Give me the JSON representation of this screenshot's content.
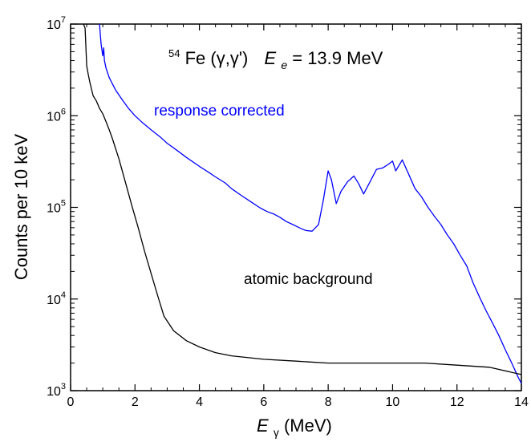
{
  "chart_data": {
    "type": "line",
    "title": {
      "iso_mass": "54",
      "nucleus": "Fe",
      "reaction": "(γ,γ')",
      "energy_symbol": "E",
      "energy_subscript": "e",
      "energy_value": " = 13.9 MeV"
    },
    "xlabel": {
      "symbol": "E",
      "subscript": "γ",
      "unit": " (MeV)"
    },
    "ylabel": "Counts per 10 keV",
    "xlim": [
      0,
      14
    ],
    "ylim": [
      1000,
      10000000
    ],
    "yscale": "log",
    "x_ticks": [
      "0",
      "2",
      "4",
      "6",
      "8",
      "10",
      "12",
      "14"
    ],
    "y_ticks": [
      {
        "base": "10",
        "exp": "3"
      },
      {
        "base": "10",
        "exp": "4"
      },
      {
        "base": "10",
        "exp": "5"
      },
      {
        "base": "10",
        "exp": "6"
      },
      {
        "base": "10",
        "exp": "7"
      }
    ],
    "grid": false,
    "series": [
      {
        "name": "response corrected",
        "color": "#0000ff",
        "x": [
          0.9,
          0.92,
          0.95,
          1.0,
          1.03,
          1.05,
          1.1,
          1.2,
          1.4,
          1.6,
          1.8,
          2.0,
          2.2,
          2.5,
          2.8,
          3.0,
          3.3,
          3.6,
          4.0,
          4.3,
          4.5,
          4.8,
          5.0,
          5.3,
          5.6,
          5.9,
          6.1,
          6.3,
          6.5,
          6.7,
          6.9,
          7.1,
          7.3,
          7.5,
          7.7,
          7.85,
          8.0,
          8.1,
          8.25,
          8.4,
          8.6,
          8.8,
          8.95,
          9.1,
          9.3,
          9.5,
          9.7,
          9.9,
          10.0,
          10.1,
          10.3,
          10.5,
          10.7,
          10.9,
          11.1,
          11.3,
          11.5,
          11.7,
          11.9,
          12.1,
          12.3,
          12.5,
          12.7,
          12.9,
          13.1,
          13.3,
          13.5,
          13.7,
          13.9,
          14.0
        ],
        "y": [
          10000000,
          8000000,
          6000000,
          4500000,
          5500000,
          4000000,
          3300000,
          2600000,
          1900000,
          1500000,
          1200000,
          1000000,
          860000,
          700000,
          580000,
          500000,
          420000,
          350000,
          280000,
          240000,
          215000,
          185000,
          160000,
          135000,
          115000,
          98000,
          90000,
          85000,
          78000,
          70000,
          65000,
          60000,
          56000,
          55000,
          65000,
          120000,
          250000,
          200000,
          110000,
          150000,
          190000,
          220000,
          180000,
          140000,
          190000,
          260000,
          270000,
          300000,
          320000,
          250000,
          330000,
          230000,
          160000,
          130000,
          100000,
          80000,
          65000,
          50000,
          40000,
          30000,
          23000,
          15000,
          10500,
          7500,
          5500,
          4000,
          2800,
          2000,
          1400,
          1200
        ]
      },
      {
        "name": "atomic background",
        "color": "#000000",
        "x": [
          0.4,
          0.45,
          0.5,
          0.55,
          0.6,
          0.7,
          0.8,
          0.9,
          1.0,
          1.1,
          1.2,
          1.3,
          1.5,
          1.7,
          1.9,
          2.1,
          2.3,
          2.5,
          2.7,
          2.9,
          3.2,
          3.6,
          4.0,
          4.5,
          5.0,
          6.0,
          7.0,
          8.0,
          9.0,
          10.0,
          11.0,
          12.0,
          13.0,
          14.0
        ],
        "y": [
          10000000,
          9000000,
          3500000,
          2800000,
          2300000,
          1650000,
          1450000,
          1200000,
          1050000,
          860000,
          700000,
          560000,
          340000,
          190000,
          105000,
          60000,
          33000,
          19000,
          11000,
          6500,
          4500,
          3500,
          3000,
          2600,
          2400,
          2200,
          2100,
          2000,
          2000,
          2000,
          2000,
          1900,
          1800,
          1500
        ]
      }
    ],
    "annotations": [
      "response corrected",
      "atomic background"
    ]
  }
}
